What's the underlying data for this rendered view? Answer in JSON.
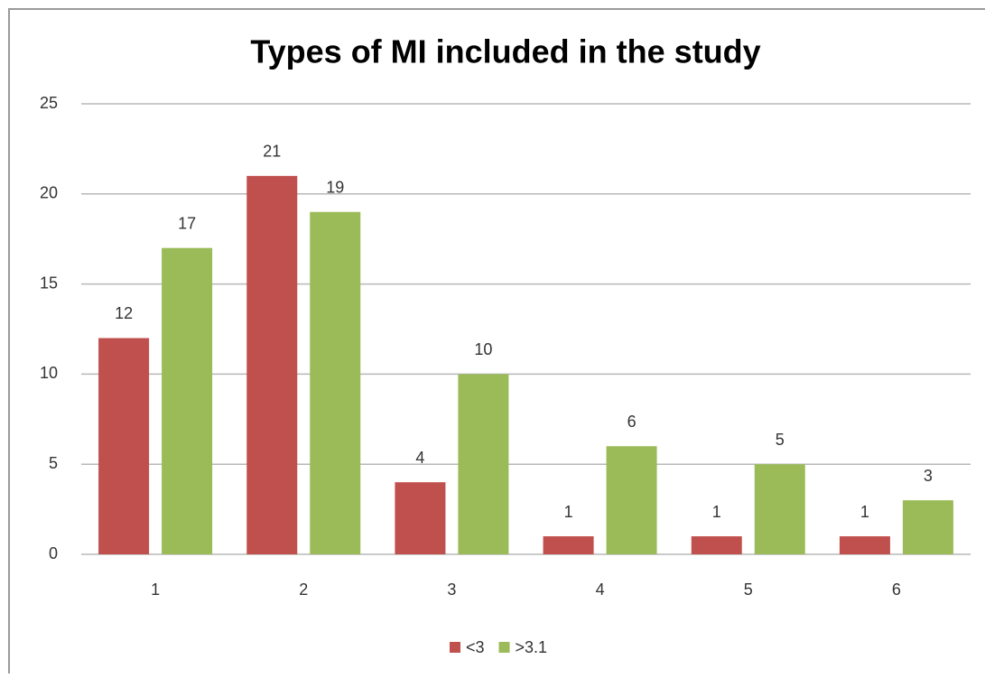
{
  "chart_data": {
    "type": "bar",
    "title": "Types of MI included in the study",
    "categories": [
      "1",
      "2",
      "3",
      "4",
      "5",
      "6"
    ],
    "series": [
      {
        "name": "<3",
        "color": "#c0504d",
        "values": [
          12,
          21,
          4,
          1,
          1,
          1
        ]
      },
      {
        "name": ">3.1",
        "color": "#9bbb59",
        "values": [
          17,
          19,
          10,
          6,
          5,
          3
        ]
      }
    ],
    "ylim": [
      0,
      25
    ],
    "yticks": [
      0,
      5,
      10,
      15,
      20,
      25
    ],
    "grid": true,
    "legend": "bottom"
  }
}
